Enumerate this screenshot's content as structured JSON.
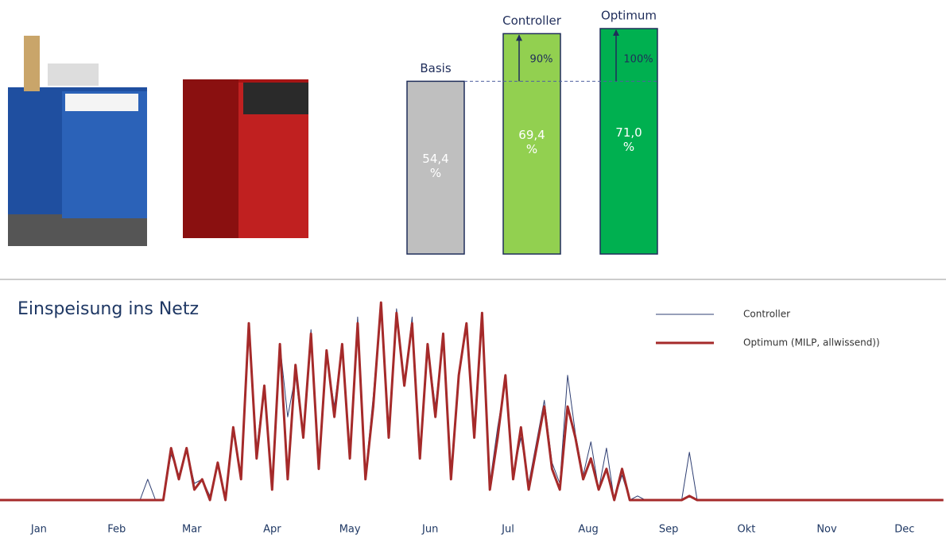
{
  "chart_data": [
    {
      "type": "bar",
      "categories": [
        "Basis",
        "Controller",
        "Optimum"
      ],
      "values": [
        54.4,
        69.4,
        71.0
      ],
      "value_labels": [
        "54,4 %",
        "69,4 %",
        "71,0 %"
      ],
      "colors": [
        "#bfbfbf",
        "#92d050",
        "#00b050"
      ],
      "ylim": [
        0,
        71
      ],
      "annotations": [
        "90%",
        "100%"
      ]
    },
    {
      "type": "line",
      "title": "Einspeisung ins Netz",
      "x": [
        0,
        54,
        57,
        60,
        63,
        66,
        69,
        72,
        75,
        78,
        81,
        84,
        87,
        90,
        93,
        96,
        99,
        102,
        105,
        108,
        111,
        114,
        117,
        120,
        123,
        126,
        129,
        132,
        135,
        138,
        141,
        144,
        147,
        150,
        153,
        156,
        159,
        162,
        165,
        168,
        171,
        174,
        177,
        180,
        183,
        186,
        189,
        192,
        195,
        198,
        201,
        204,
        207,
        210,
        213,
        216,
        219,
        222,
        225,
        228,
        231,
        234,
        237,
        240,
        243,
        246,
        249,
        263,
        266,
        269,
        364
      ],
      "xlim": [
        0,
        365
      ],
      "ylim": [
        0,
        1
      ],
      "xticks": [
        {
          "value": 15,
          "label": "Jan"
        },
        {
          "value": 45,
          "label": "Feb"
        },
        {
          "value": 74,
          "label": "Mar"
        },
        {
          "value": 105,
          "label": "Apr"
        },
        {
          "value": 135,
          "label": "May"
        },
        {
          "value": 166,
          "label": "Jun"
        },
        {
          "value": 196,
          "label": "Jul"
        },
        {
          "value": 227,
          "label": "Aug"
        },
        {
          "value": 258,
          "label": "Sep"
        },
        {
          "value": 288,
          "label": "Okt"
        },
        {
          "value": 319,
          "label": "Nov"
        },
        {
          "value": 349,
          "label": "Dec"
        }
      ],
      "series": [
        {
          "name": "Controller",
          "color": "#2f3f73",
          "width": 1,
          "values": [
            0,
            0,
            0.1,
            0,
            0,
            0.22,
            0.12,
            0.25,
            0.08,
            0.1,
            0.02,
            0.18,
            0,
            0.35,
            0.12,
            0.82,
            0.25,
            0.55,
            0.08,
            0.75,
            0.4,
            0.6,
            0.3,
            0.82,
            0.15,
            0.7,
            0.45,
            0.75,
            0.22,
            0.88,
            0.12,
            0.5,
            0.95,
            0.32,
            0.92,
            0.55,
            0.88,
            0.22,
            0.75,
            0.45,
            0.78,
            0.1,
            0.62,
            0.85,
            0.35,
            0.9,
            0.08,
            0.35,
            0.58,
            0.12,
            0.3,
            0.08,
            0.28,
            0.48,
            0.18,
            0.08,
            0.6,
            0.32,
            0.12,
            0.28,
            0.05,
            0.25,
            0,
            0.12,
            0,
            0.02,
            0,
            0,
            0.23,
            0,
            0
          ]
        },
        {
          "name": "Optimum (MILP, allwissend))",
          "color": "#a52a2a",
          "width": 3,
          "values": [
            0,
            0,
            0,
            0,
            0,
            0.25,
            0.1,
            0.25,
            0.05,
            0.1,
            0,
            0.18,
            0,
            0.35,
            0.1,
            0.85,
            0.2,
            0.55,
            0.05,
            0.75,
            0.1,
            0.65,
            0.3,
            0.8,
            0.15,
            0.72,
            0.4,
            0.75,
            0.2,
            0.85,
            0.1,
            0.45,
            0.95,
            0.3,
            0.9,
            0.55,
            0.85,
            0.2,
            0.75,
            0.4,
            0.8,
            0.1,
            0.6,
            0.85,
            0.3,
            0.9,
            0.05,
            0.3,
            0.6,
            0.1,
            0.35,
            0.05,
            0.25,
            0.45,
            0.15,
            0.05,
            0.45,
            0.3,
            0.1,
            0.2,
            0.05,
            0.15,
            0,
            0.15,
            0,
            0,
            0,
            0,
            0.02,
            0,
            0
          ]
        }
      ]
    }
  ]
}
